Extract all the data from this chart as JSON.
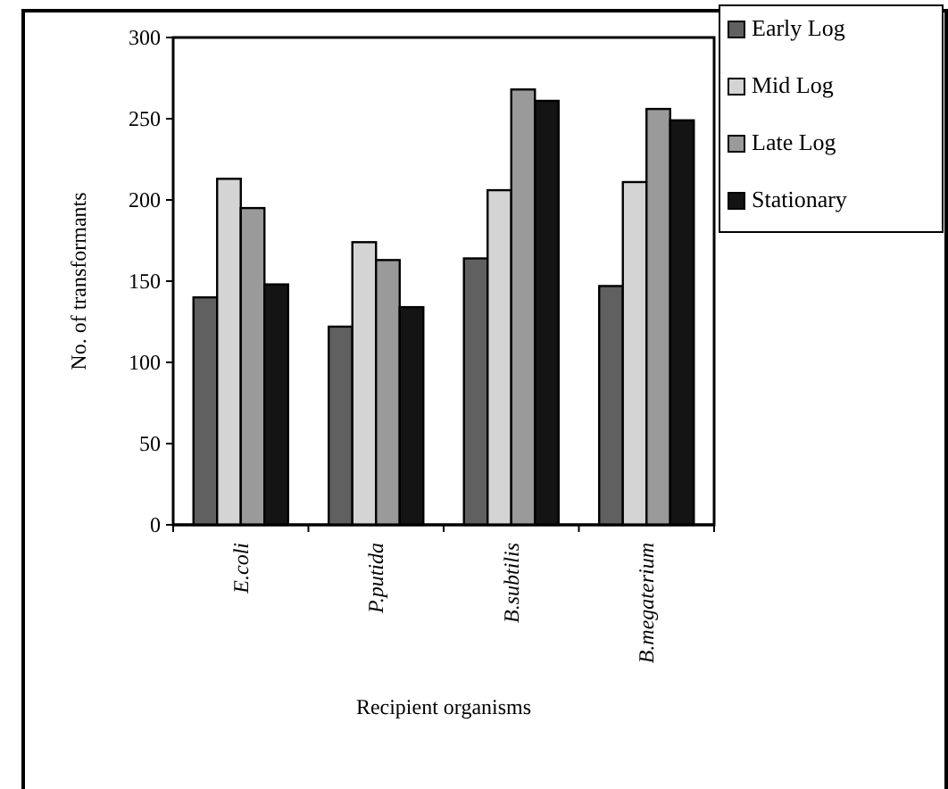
{
  "chart_data": {
    "type": "bar",
    "xlabel": "Recipient organisms",
    "ylabel": "No. of transformants",
    "categories": [
      "E.coli",
      "P.putida",
      "B.subtilis",
      "B.megaterium"
    ],
    "series": [
      {
        "name": "Early Log",
        "color": "#606060",
        "values": [
          140,
          122,
          164,
          147
        ]
      },
      {
        "name": "Mid Log",
        "color": "#d4d4d4",
        "values": [
          213,
          174,
          206,
          211
        ]
      },
      {
        "name": "Late Log",
        "color": "#9a9a9a",
        "values": [
          195,
          163,
          268,
          256
        ]
      },
      {
        "name": "Stationary",
        "color": "#141414",
        "values": [
          148,
          134,
          261,
          249
        ]
      }
    ],
    "ylim": [
      0,
      300
    ],
    "yticks": [
      0,
      50,
      100,
      150,
      200,
      250,
      300
    ],
    "grid": false,
    "legend": "top right"
  }
}
